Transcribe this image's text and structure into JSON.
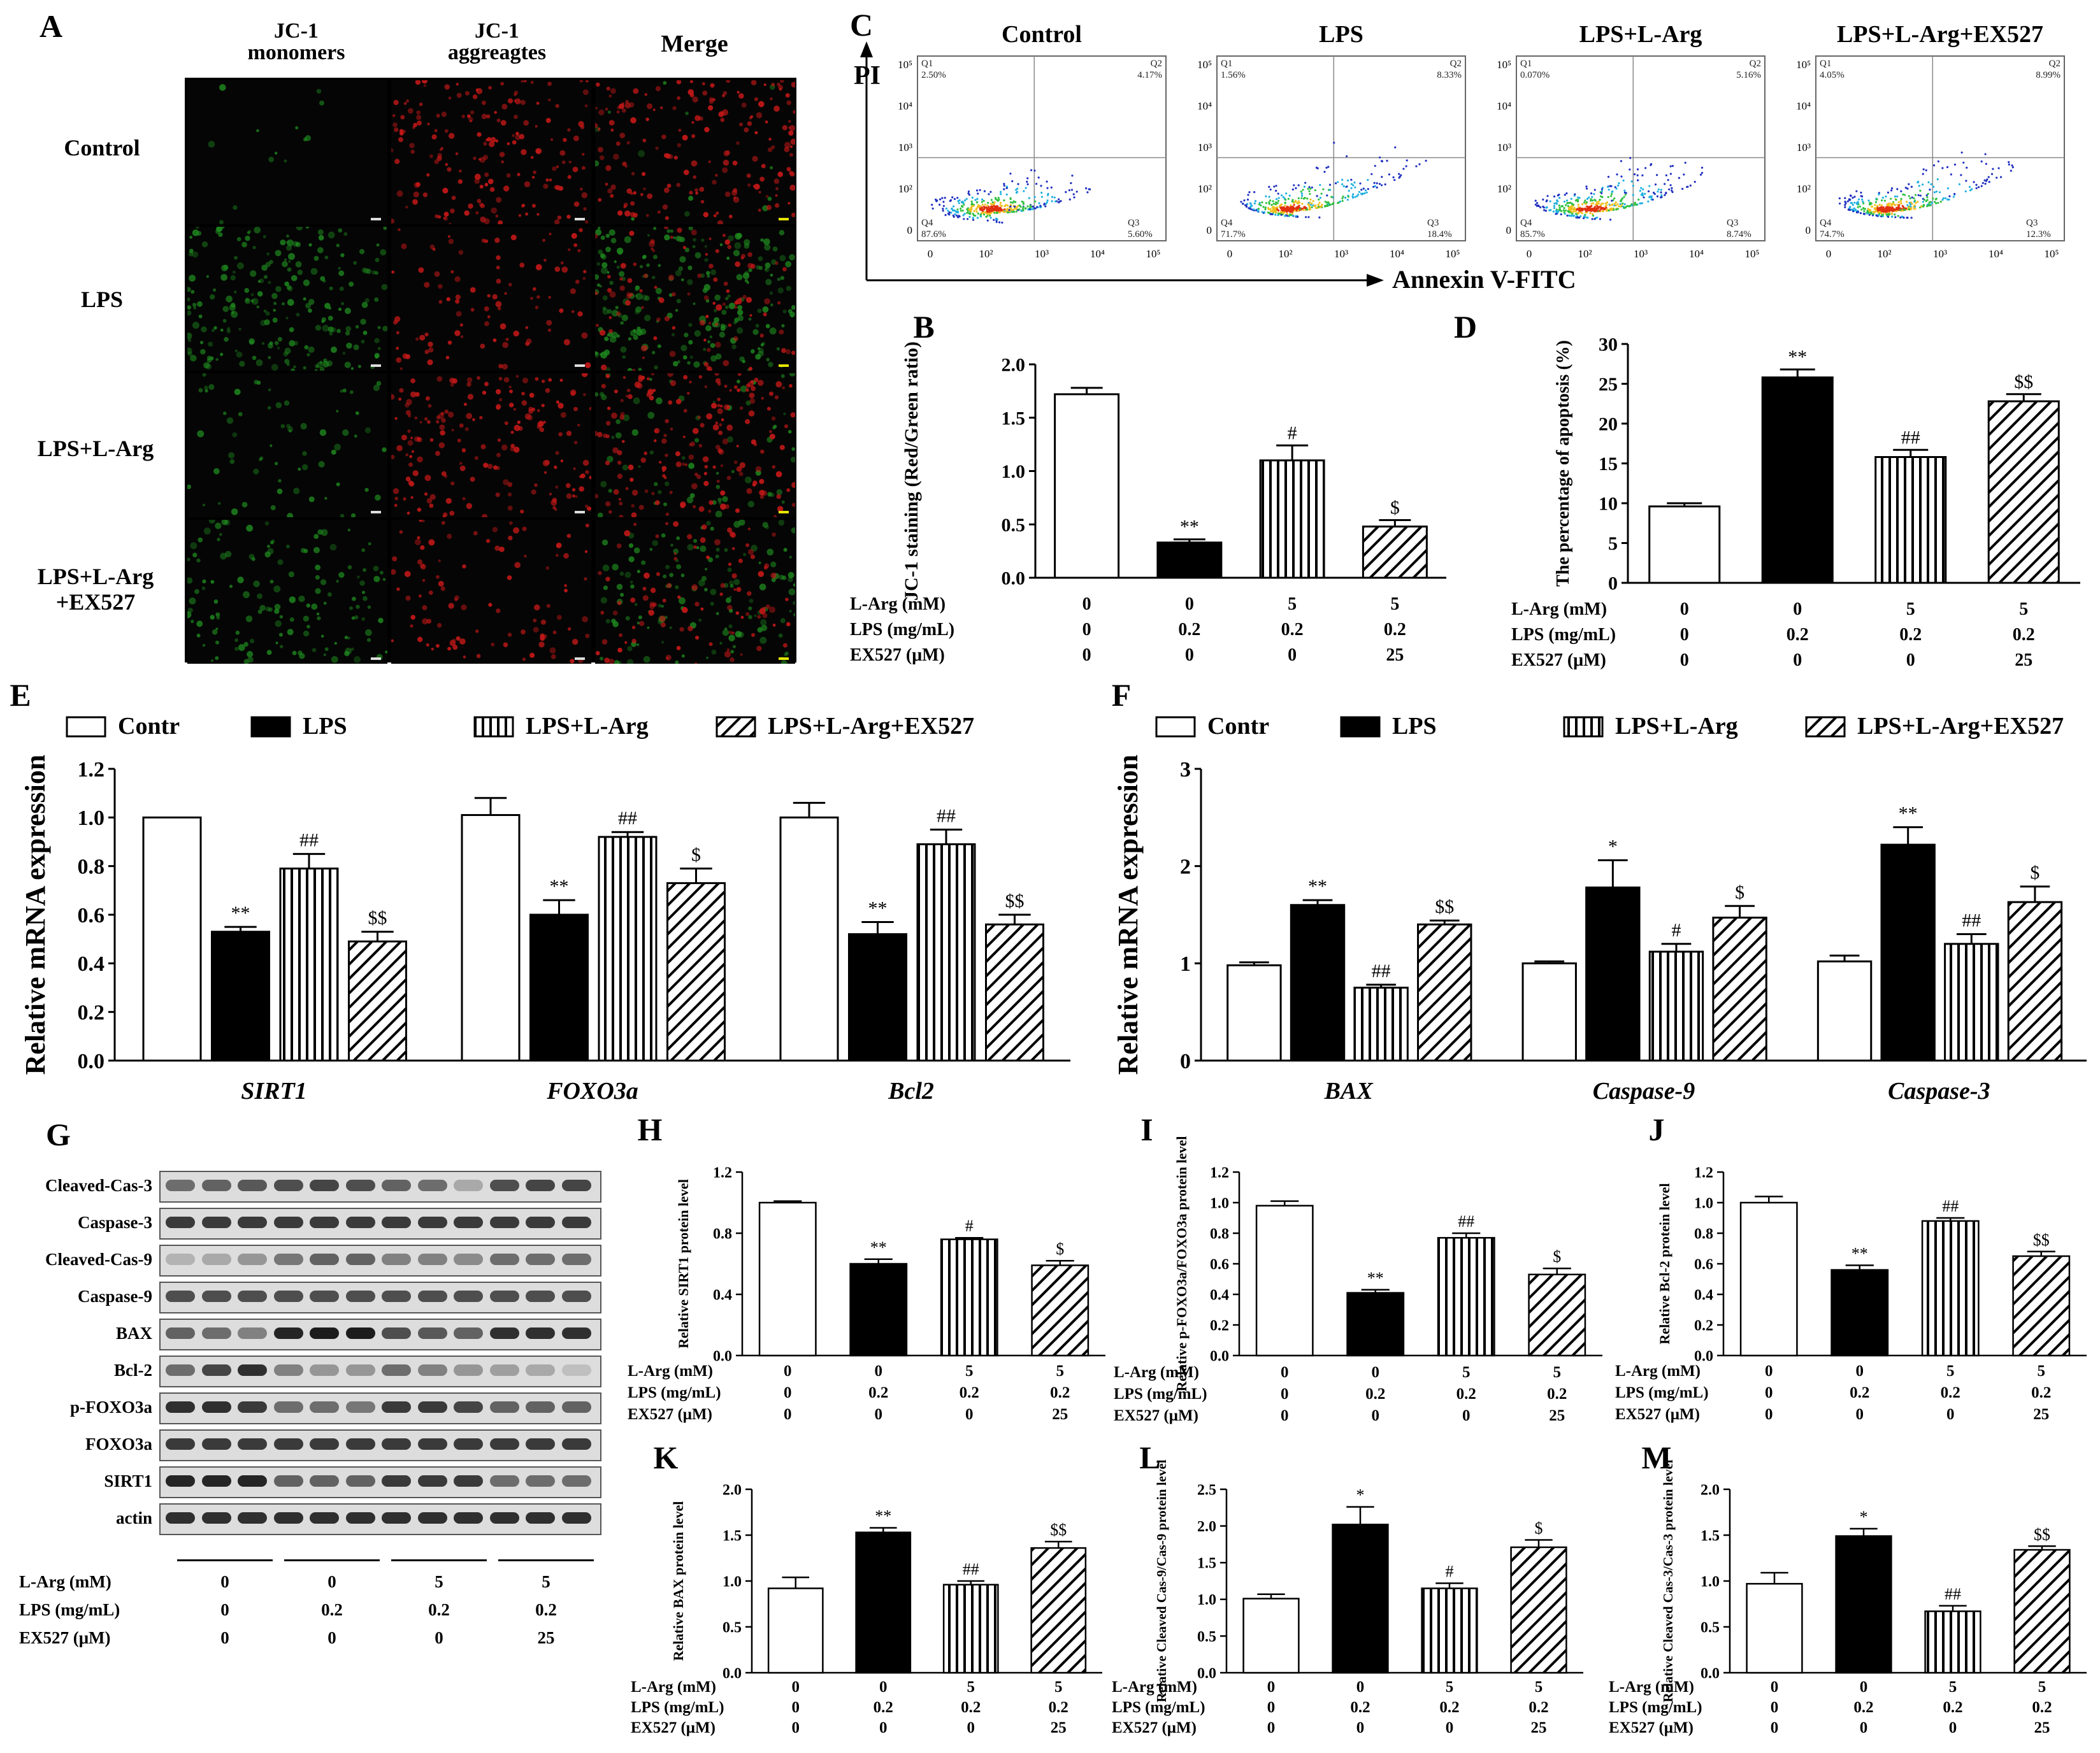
{
  "panel_A": {
    "letter": "A",
    "columns": [
      "JC-1 monomers",
      "JC-1 aggreagtes",
      "Merge"
    ],
    "rows": [
      "Control",
      "LPS",
      "LPS+L-Arg",
      "LPS+L-Arg +EX527"
    ],
    "channel_colors": {
      "green": "#1f8a1f",
      "red": "#c41818"
    }
  },
  "panel_C": {
    "letter": "C",
    "yaxis": "PI",
    "xaxis": "Annexin V-FITC",
    "plots": [
      {
        "title": "Control",
        "q1": "Q1",
        "q1v": "2.50%",
        "q2": "Q2",
        "q2v": "4.17%",
        "q3": "Q3",
        "q3v": "5.60%",
        "q4": "Q4",
        "q4v": "87.6%"
      },
      {
        "title": "LPS",
        "q1": "Q1",
        "q1v": "1.56%",
        "q2": "Q2",
        "q2v": "8.33%",
        "q3": "Q3",
        "q3v": "18.4%",
        "q4": "Q4",
        "q4v": "71.7%"
      },
      {
        "title": "LPS+L-Arg",
        "q1": "Q1",
        "q1v": "0.070%",
        "q2": "Q2",
        "q2v": "5.16%",
        "q3": "Q3",
        "q3v": "8.74%",
        "q4": "Q4",
        "q4v": "85.7%"
      },
      {
        "title": "LPS+L-Arg+EX527",
        "q1": "Q1",
        "q1v": "4.05%",
        "q2": "Q2",
        "q2v": "8.99%",
        "q3": "Q3",
        "q3v": "12.3%",
        "q4": "Q4",
        "q4v": "74.7%"
      }
    ],
    "ticks_x": [
      "0",
      "10²",
      "10³",
      "10⁴",
      "10⁵"
    ],
    "ticks_y": [
      "0",
      "10²",
      "10³",
      "10⁴",
      "10⁵"
    ]
  },
  "panel_G": {
    "letter": "G",
    "bands": [
      "Cleaved-Cas-3",
      "Caspase-3",
      "Cleaved-Cas-9",
      "Caspase-9",
      "BAX",
      "Bcl-2",
      "p-FOXO3a",
      "FOXO3a",
      "SIRT1",
      "actin"
    ],
    "conditions": [
      {
        "label": "L-Arg (mM)",
        "values": [
          "0",
          "0",
          "5",
          "5"
        ]
      },
      {
        "label": "LPS (mg/mL)",
        "values": [
          "0",
          "0.2",
          "0.2",
          "0.2"
        ]
      },
      {
        "label": "EX527 (μM)",
        "values": [
          "0",
          "0",
          "0",
          "25"
        ]
      }
    ]
  },
  "conditions_table": [
    {
      "label": "L-Arg (mM)",
      "values": [
        "0",
        "0",
        "5",
        "5"
      ]
    },
    {
      "label": "LPS (mg/mL)",
      "values": [
        "0",
        "0.2",
        "0.2",
        "0.2"
      ]
    },
    {
      "label": "EX527 (μM)",
      "values": [
        "0",
        "0",
        "0",
        "25"
      ]
    }
  ],
  "legend": [
    "Contr",
    "LPS",
    "LPS+L-Arg",
    "LPS+L-Arg+EX527"
  ],
  "chart_data": [
    {
      "id": "B",
      "type": "bar",
      "ylabel": "JC-1 staining (Red/Green ratio)",
      "ylim": [
        0,
        2.0
      ],
      "ticks": [
        "0.0",
        "0.5",
        "1.0",
        "1.5",
        "2.0"
      ],
      "values": [
        1.72,
        0.33,
        1.1,
        0.48
      ],
      "errors": [
        0.06,
        0.03,
        0.14,
        0.06
      ],
      "sig": [
        "",
        "**",
        "#",
        "$"
      ]
    },
    {
      "id": "D",
      "type": "bar",
      "ylabel": "The percentage of apoptosis (%)",
      "ylim": [
        0,
        30
      ],
      "ticks": [
        "0",
        "5",
        "10",
        "15",
        "20",
        "25",
        "30"
      ],
      "values": [
        9.6,
        25.8,
        15.8,
        22.8
      ],
      "errors": [
        0.4,
        1.0,
        0.9,
        0.9
      ],
      "sig": [
        "",
        "**",
        "##",
        "$$"
      ]
    },
    {
      "id": "E",
      "type": "bar",
      "ylabel": "Relative mRNA expression",
      "ylim": [
        0,
        1.2
      ],
      "ticks": [
        "0.0",
        "0.2",
        "0.4",
        "0.6",
        "0.8",
        "1.0",
        "1.2"
      ],
      "categories": [
        "SIRT1",
        "FOXO3a",
        "Bcl2"
      ],
      "series": [
        {
          "name": "Contr",
          "values": [
            1.0,
            1.01,
            1.0
          ],
          "errors": [
            0.0,
            0.07,
            0.06
          ],
          "sig": [
            "",
            "",
            ""
          ]
        },
        {
          "name": "LPS",
          "values": [
            0.53,
            0.6,
            0.52
          ],
          "errors": [
            0.02,
            0.06,
            0.05
          ],
          "sig": [
            "**",
            "**",
            "**"
          ]
        },
        {
          "name": "LPS+L-Arg",
          "values": [
            0.79,
            0.92,
            0.89
          ],
          "errors": [
            0.06,
            0.02,
            0.06
          ],
          "sig": [
            "##",
            "##",
            "##"
          ]
        },
        {
          "name": "LPS+L-Arg+EX527",
          "values": [
            0.49,
            0.73,
            0.56
          ],
          "errors": [
            0.04,
            0.06,
            0.04
          ],
          "sig": [
            "$$",
            "$",
            "$$"
          ]
        }
      ]
    },
    {
      "id": "F",
      "type": "bar",
      "ylabel": "Relative mRNA expression",
      "ylim": [
        0,
        3
      ],
      "ticks": [
        "0",
        "1",
        "2",
        "3"
      ],
      "categories": [
        "BAX",
        "Caspase-9",
        "Caspase-3"
      ],
      "series": [
        {
          "name": "Contr",
          "values": [
            0.98,
            1.0,
            1.02
          ],
          "errors": [
            0.03,
            0.02,
            0.06
          ],
          "sig": [
            "",
            "",
            ""
          ]
        },
        {
          "name": "LPS",
          "values": [
            1.6,
            1.78,
            2.22
          ],
          "errors": [
            0.05,
            0.28,
            0.18
          ],
          "sig": [
            "**",
            "*",
            "**"
          ]
        },
        {
          "name": "LPS+L-Arg",
          "values": [
            0.75,
            1.12,
            1.2
          ],
          "errors": [
            0.03,
            0.08,
            0.1
          ],
          "sig": [
            "##",
            "#",
            "##"
          ]
        },
        {
          "name": "LPS+L-Arg+EX527",
          "values": [
            1.4,
            1.47,
            1.63
          ],
          "errors": [
            0.04,
            0.12,
            0.16
          ],
          "sig": [
            "$$",
            "$",
            "$"
          ]
        }
      ]
    },
    {
      "id": "H",
      "type": "bar",
      "ylabel": "Relative SIRT1 protein level",
      "ylim": [
        0,
        1.2
      ],
      "ticks": [
        "0.0",
        "0.4",
        "0.8",
        "1.2"
      ],
      "values": [
        1.0,
        0.6,
        0.76,
        0.59
      ],
      "errors": [
        0.01,
        0.03,
        0.01,
        0.03
      ],
      "sig": [
        "",
        "**",
        "#",
        "$"
      ]
    },
    {
      "id": "I",
      "type": "bar",
      "ylabel": "Relative p-FOXO3a/FOXO3a protein level",
      "ylim": [
        0,
        1.2
      ],
      "ticks": [
        "0.0",
        "0.2",
        "0.4",
        "0.6",
        "0.8",
        "1.0",
        "1.2"
      ],
      "values": [
        0.98,
        0.41,
        0.77,
        0.53
      ],
      "errors": [
        0.03,
        0.02,
        0.03,
        0.04
      ],
      "sig": [
        "",
        "**",
        "##",
        "$"
      ]
    },
    {
      "id": "J",
      "type": "bar",
      "ylabel": "Relative Bcl-2 protein level",
      "ylim": [
        0,
        1.2
      ],
      "ticks": [
        "0.0",
        "0.2",
        "0.4",
        "0.6",
        "0.8",
        "1.0",
        "1.2"
      ],
      "values": [
        1.0,
        0.56,
        0.88,
        0.65
      ],
      "errors": [
        0.04,
        0.03,
        0.02,
        0.03
      ],
      "sig": [
        "",
        "**",
        "##",
        "$$"
      ]
    },
    {
      "id": "K",
      "type": "bar",
      "ylabel": "Relative BAX protein level",
      "ylim": [
        0,
        2.0
      ],
      "ticks": [
        "0.0",
        "0.5",
        "1.0",
        "1.5",
        "2.0"
      ],
      "values": [
        0.92,
        1.53,
        0.96,
        1.36
      ],
      "errors": [
        0.12,
        0.05,
        0.04,
        0.07
      ],
      "sig": [
        "",
        "**",
        "##",
        "$$"
      ]
    },
    {
      "id": "L",
      "type": "bar",
      "ylabel": "Relative Cleaved Cas-9/Cas-9 protein level",
      "ylim": [
        0,
        2.5
      ],
      "ticks": [
        "0.0",
        "0.5",
        "1.0",
        "1.5",
        "2.0",
        "2.5"
      ],
      "values": [
        1.01,
        2.02,
        1.15,
        1.71
      ],
      "errors": [
        0.06,
        0.24,
        0.07,
        0.1
      ],
      "sig": [
        "",
        "*",
        "#",
        "$"
      ]
    },
    {
      "id": "M",
      "type": "bar",
      "ylabel": "Relative Cleaved Cas-3/Cas-3 protein level",
      "ylim": [
        0,
        2.0
      ],
      "ticks": [
        "0.0",
        "0.5",
        "1.0",
        "1.5",
        "2.0"
      ],
      "values": [
        0.97,
        1.49,
        0.67,
        1.34
      ],
      "errors": [
        0.12,
        0.08,
        0.06,
        0.04
      ],
      "sig": [
        "",
        "*",
        "##",
        "$$"
      ]
    }
  ]
}
